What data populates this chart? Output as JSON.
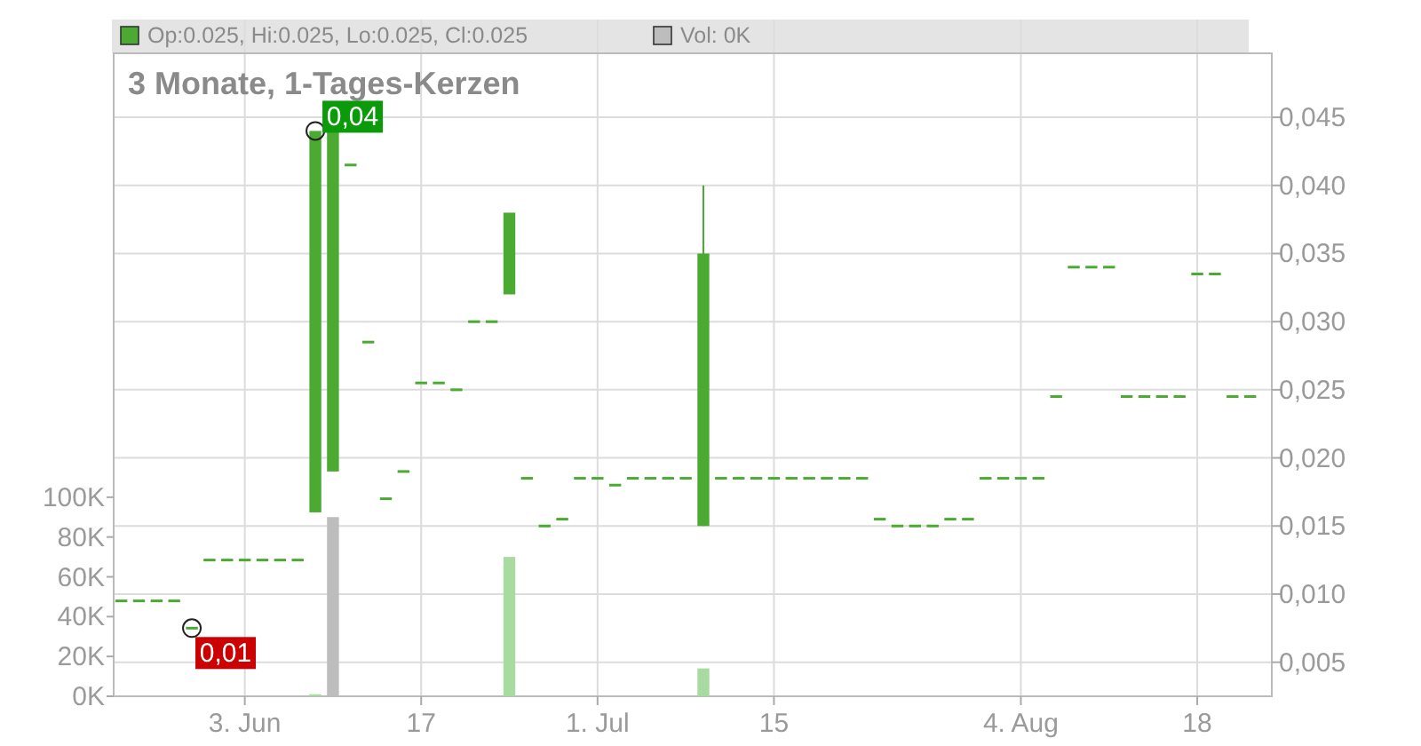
{
  "chart_data": {
    "type": "candlestick",
    "title": "3 Monate, 1-Tages-Kerzen",
    "categories": [
      null,
      null,
      null,
      null,
      null,
      null,
      null,
      "3. Jun",
      null,
      null,
      null,
      null,
      null,
      null,
      null,
      null,
      null,
      "17",
      null,
      null,
      null,
      null,
      null,
      null,
      null,
      null,
      null,
      "1. Jul",
      null,
      null,
      null,
      null,
      null,
      null,
      null,
      null,
      null,
      "15",
      null,
      null,
      null,
      null,
      null,
      null,
      null,
      null,
      null,
      null,
      null,
      null,
      null,
      "4. Aug",
      null,
      null,
      null,
      null,
      null,
      null,
      null,
      null,
      null,
      "18",
      null,
      null,
      null
    ],
    "series": [
      {
        "name": "Op:0.025, Hi:0.025, Lo:0.025, Cl:0.025",
        "color": "#4aaa32",
        "ohlc": [
          [
            0.0095,
            0.0095,
            0.0095,
            0.0095
          ],
          [
            0.0095,
            0.0095,
            0.0095,
            0.0095
          ],
          [
            0.0095,
            0.0095,
            0.0095,
            0.0095
          ],
          [
            0.0095,
            0.0095,
            0.0095,
            0.0095
          ],
          [
            0.0075,
            0.0075,
            0.0075,
            0.0075
          ],
          [
            0.0125,
            0.0125,
            0.0125,
            0.0125
          ],
          [
            0.0125,
            0.0125,
            0.0125,
            0.0125
          ],
          [
            0.0125,
            0.0125,
            0.0125,
            0.0125
          ],
          [
            0.0125,
            0.0125,
            0.0125,
            0.0125
          ],
          [
            0.0125,
            0.0125,
            0.0125,
            0.0125
          ],
          [
            0.0125,
            0.0125,
            0.0125,
            0.0125
          ],
          [
            0.016,
            0.044,
            0.016,
            0.044
          ],
          [
            0.019,
            0.044,
            0.019,
            0.044
          ],
          [
            0.0415,
            0.0415,
            0.0415,
            0.0415
          ],
          [
            0.0285,
            0.0285,
            0.0285,
            0.0285
          ],
          [
            0.017,
            0.017,
            0.017,
            0.017
          ],
          [
            0.019,
            0.019,
            0.019,
            0.019
          ],
          [
            0.0255,
            0.0255,
            0.0255,
            0.0255
          ],
          [
            0.0255,
            0.0255,
            0.0255,
            0.0255
          ],
          [
            0.025,
            0.025,
            0.025,
            0.025
          ],
          [
            0.03,
            0.03,
            0.03,
            0.03
          ],
          [
            0.03,
            0.03,
            0.03,
            0.03
          ],
          [
            0.032,
            0.038,
            0.032,
            0.038
          ],
          [
            0.0185,
            0.0185,
            0.0185,
            0.0185
          ],
          [
            0.015,
            0.015,
            0.015,
            0.015
          ],
          [
            0.0155,
            0.0155,
            0.0155,
            0.0155
          ],
          [
            0.0185,
            0.0185,
            0.0185,
            0.0185
          ],
          [
            0.0185,
            0.0185,
            0.0185,
            0.0185
          ],
          [
            0.018,
            0.018,
            0.018,
            0.018
          ],
          [
            0.0185,
            0.0185,
            0.0185,
            0.0185
          ],
          [
            0.0185,
            0.0185,
            0.0185,
            0.0185
          ],
          [
            0.0185,
            0.0185,
            0.0185,
            0.0185
          ],
          [
            0.0185,
            0.0185,
            0.0185,
            0.0185
          ],
          [
            0.015,
            0.04,
            0.015,
            0.035
          ],
          [
            0.0185,
            0.0185,
            0.0185,
            0.0185
          ],
          [
            0.0185,
            0.0185,
            0.0185,
            0.0185
          ],
          [
            0.0185,
            0.0185,
            0.0185,
            0.0185
          ],
          [
            0.0185,
            0.0185,
            0.0185,
            0.0185
          ],
          [
            0.0185,
            0.0185,
            0.0185,
            0.0185
          ],
          [
            0.0185,
            0.0185,
            0.0185,
            0.0185
          ],
          [
            0.0185,
            0.0185,
            0.0185,
            0.0185
          ],
          [
            0.0185,
            0.0185,
            0.0185,
            0.0185
          ],
          [
            0.0185,
            0.0185,
            0.0185,
            0.0185
          ],
          [
            0.0155,
            0.0155,
            0.0155,
            0.0155
          ],
          [
            0.015,
            0.015,
            0.015,
            0.015
          ],
          [
            0.015,
            0.015,
            0.015,
            0.015
          ],
          [
            0.015,
            0.015,
            0.015,
            0.015
          ],
          [
            0.0155,
            0.0155,
            0.0155,
            0.0155
          ],
          [
            0.0155,
            0.0155,
            0.0155,
            0.0155
          ],
          [
            0.0185,
            0.0185,
            0.0185,
            0.0185
          ],
          [
            0.0185,
            0.0185,
            0.0185,
            0.0185
          ],
          [
            0.0185,
            0.0185,
            0.0185,
            0.0185
          ],
          [
            0.0185,
            0.0185,
            0.0185,
            0.0185
          ],
          [
            0.0245,
            0.0245,
            0.0245,
            0.0245
          ],
          [
            0.034,
            0.034,
            0.034,
            0.034
          ],
          [
            0.034,
            0.034,
            0.034,
            0.034
          ],
          [
            0.034,
            0.034,
            0.034,
            0.034
          ],
          [
            0.0245,
            0.0245,
            0.0245,
            0.0245
          ],
          [
            0.0245,
            0.0245,
            0.0245,
            0.0245
          ],
          [
            0.0245,
            0.0245,
            0.0245,
            0.0245
          ],
          [
            0.0245,
            0.0245,
            0.0245,
            0.0245
          ],
          [
            0.0335,
            0.0335,
            0.0335,
            0.0335
          ],
          [
            0.0335,
            0.0335,
            0.0335,
            0.0335
          ],
          [
            0.0245,
            0.0245,
            0.0245,
            0.0245
          ],
          [
            0.0245,
            0.0245,
            0.0245,
            0.0245
          ]
        ]
      },
      {
        "name": "Vol: 0K",
        "type": "bar",
        "axis": "y2",
        "color": "#bdbdbd",
        "colors": [
          "#a8dba0",
          "#a8dba0",
          "#a8dba0",
          "#a8dba0",
          "#a8dba0",
          "#a8dba0",
          "#a8dba0",
          "#a8dba0",
          "#a8dba0",
          "#a8dba0",
          "#a8dba0",
          "#a8dba0",
          "#bdbdbd",
          "#a8dba0",
          "#a8dba0",
          "#a8dba0",
          "#a8dba0",
          "#a8dba0",
          "#a8dba0",
          "#a8dba0",
          "#a8dba0",
          "#a8dba0",
          "#a8dba0",
          "#a8dba0",
          "#a8dba0",
          "#a8dba0",
          "#a8dba0",
          "#a8dba0",
          "#a8dba0",
          "#a8dba0",
          "#a8dba0",
          "#a8dba0",
          "#a8dba0",
          "#a8dba0",
          "#a8dba0",
          "#a8dba0",
          "#a8dba0",
          "#a8dba0",
          "#a8dba0",
          "#a8dba0",
          "#a8dba0",
          "#a8dba0",
          "#a8dba0",
          "#a8dba0",
          "#a8dba0",
          "#a8dba0",
          "#a8dba0",
          "#a8dba0",
          "#a8dba0",
          "#a8dba0",
          "#a8dba0",
          "#a8dba0",
          "#a8dba0",
          "#a8dba0",
          "#a8dba0",
          "#a8dba0",
          "#a8dba0",
          "#a8dba0",
          "#a8dba0",
          "#a8dba0",
          "#a8dba0",
          "#a8dba0",
          "#a8dba0",
          "#a8dba0",
          "#a8dba0"
        ],
        "values": [
          0,
          0,
          0,
          0,
          0,
          0,
          0,
          0,
          0,
          0,
          0,
          1000,
          90000,
          0,
          0,
          0,
          0,
          0,
          0,
          0,
          0,
          0,
          70000,
          0,
          0,
          0,
          0,
          0,
          0,
          0,
          0,
          0,
          0,
          14000,
          0,
          0,
          0,
          0,
          0,
          0,
          0,
          0,
          0,
          0,
          0,
          0,
          0,
          0,
          0,
          0,
          0,
          0,
          0,
          0,
          0,
          0,
          0,
          0,
          0,
          0,
          0,
          0,
          0,
          0,
          0
        ]
      }
    ],
    "ylim": [
      0.0025,
      0.0497
    ],
    "yticks": [
      {
        "value": 0.005,
        "label": "0,005"
      },
      {
        "value": 0.01,
        "label": "0,010"
      },
      {
        "value": 0.015,
        "label": "0,015"
      },
      {
        "value": 0.02,
        "label": "0,020"
      },
      {
        "value": 0.025,
        "label": "0,025"
      },
      {
        "value": 0.03,
        "label": "0,030"
      },
      {
        "value": 0.035,
        "label": "0,035"
      },
      {
        "value": 0.04,
        "label": "0,040"
      },
      {
        "value": 0.045,
        "label": "0,045"
      }
    ],
    "y2lim": [
      0,
      323000
    ],
    "y2ticks": [
      {
        "value": 0,
        "label": "0K"
      },
      {
        "value": 20000,
        "label": "20K"
      },
      {
        "value": 40000,
        "label": "40K"
      },
      {
        "value": 60000,
        "label": "60K"
      },
      {
        "value": 80000,
        "label": "80K"
      },
      {
        "value": 100000,
        "label": "100K"
      }
    ],
    "annotations": [
      "0,04",
      "0,01"
    ],
    "grid": true,
    "legend": "top"
  }
}
